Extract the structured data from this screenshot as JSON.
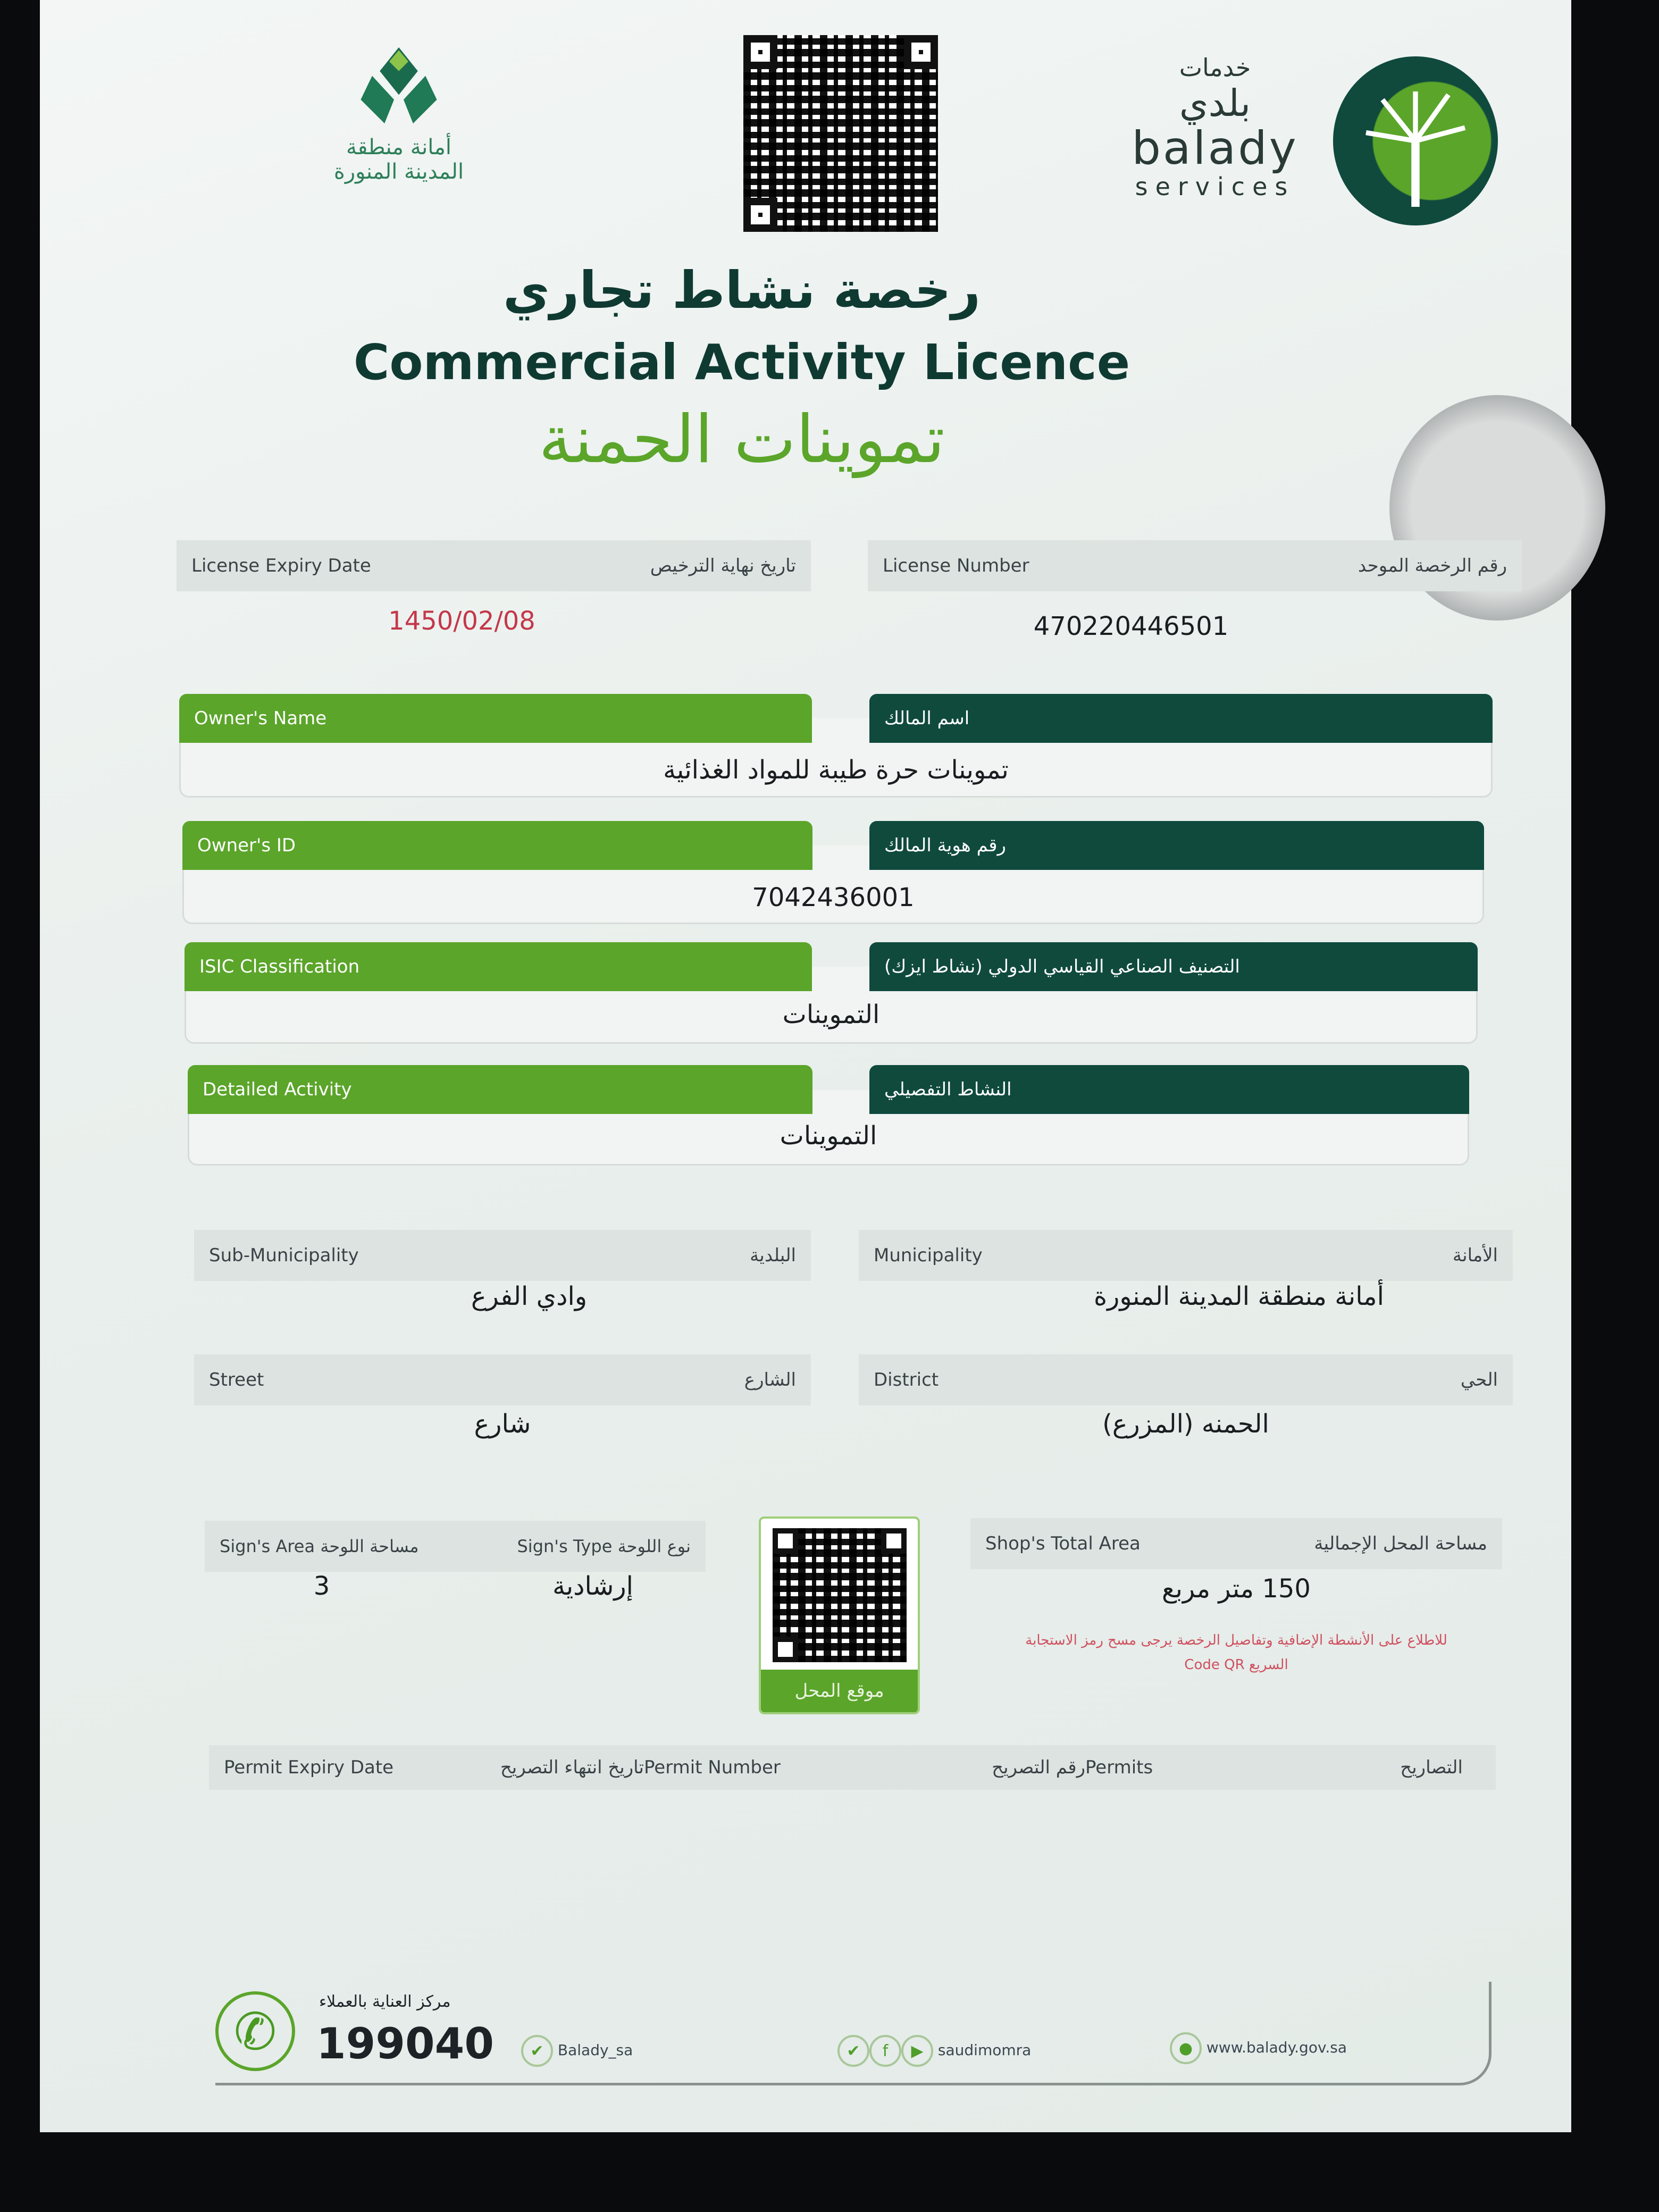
{
  "header": {
    "medina_logo_text": [
      "أمانة منطقة",
      "المدينة المنورة"
    ],
    "balady_logo_text": {
      "arabic_top": "خدمات",
      "arabic_main": "بلدي",
      "en_main": "balady",
      "en_sub": "services"
    },
    "title_ar": "رخصة نشاط تجاري",
    "title_en": "Commercial Activity Licence",
    "business_name": "تموينات الحمنة"
  },
  "license": {
    "expiry": {
      "label_en": "License Expiry Date",
      "label_ar": "تاريخ نهاية الترخيص",
      "value": "1450/02/08"
    },
    "number": {
      "label_en": "License Number",
      "label_ar": "رقم الرخصة الموحد",
      "value": "470220446501"
    }
  },
  "fields": [
    {
      "label_en": "Owner's Name",
      "label_ar": "اسم المالك",
      "value": "تموينات حرة طيبة للمواد الغذائية"
    },
    {
      "label_en": "Owner's ID",
      "label_ar": "رقم هوية المالك",
      "value": "7042436001"
    },
    {
      "label_en": "ISIC Classification",
      "label_ar": "التصنيف الصناعي القياسي الدولي (نشاط ايزك)",
      "value": "التموينات"
    },
    {
      "label_en": "Detailed Activity",
      "label_ar": "النشاط التفصيلي",
      "value": "التموينات"
    }
  ],
  "location": {
    "sub_municipality": {
      "label_en": "Sub-Municipality",
      "label_ar": "البلدية",
      "value": "وادي الفرع"
    },
    "municipality": {
      "label_en": "Municipality",
      "label_ar": "الأمانة",
      "value": "أمانة منطقة المدينة المنورة"
    },
    "street": {
      "label_en": "Street",
      "label_ar": "الشارع",
      "value": "شارع"
    },
    "district": {
      "label_en": "District",
      "label_ar": "الحي",
      "value": "الحمنه (المزرع)"
    }
  },
  "signs": {
    "area": {
      "label_en": "Sign's Area",
      "label_ar": "مساحة اللوحة",
      "value": "3"
    },
    "type": {
      "label_en": "Sign's Type",
      "label_ar": "نوع اللوحة",
      "value": "إرشادية"
    }
  },
  "shop_location_button": "موقع المحل",
  "shop_area": {
    "label_en": "Shop's Total Area",
    "label_ar": "مساحة المحل الإجمالية",
    "value": "150 متر مربع"
  },
  "qr_note": {
    "line1": "للاطلاع على الأنشطة الإضافية وتفاصيل الرخصة يرجى مسح رمز الاستجابة",
    "line2": "السريع Code QR"
  },
  "permits": {
    "expiry_en": "Permit Expiry Date",
    "expiry_ar": "تاريخ انتهاء التصريح",
    "number_en": "Permit Number",
    "number_ar": "رقم التصريح",
    "permits_en": "Permits",
    "permits_ar": "التصاريح"
  },
  "footer": {
    "care_label": "مركز العناية بالعملاء",
    "phone": "199040",
    "twitter": "Balady_sa",
    "social": "saudimomra",
    "website": "www.balady.gov.sa"
  },
  "colors": {
    "dark_green": "#0f4a3d",
    "light_green": "#5ba52a",
    "expiry_red": "#c4384a"
  }
}
